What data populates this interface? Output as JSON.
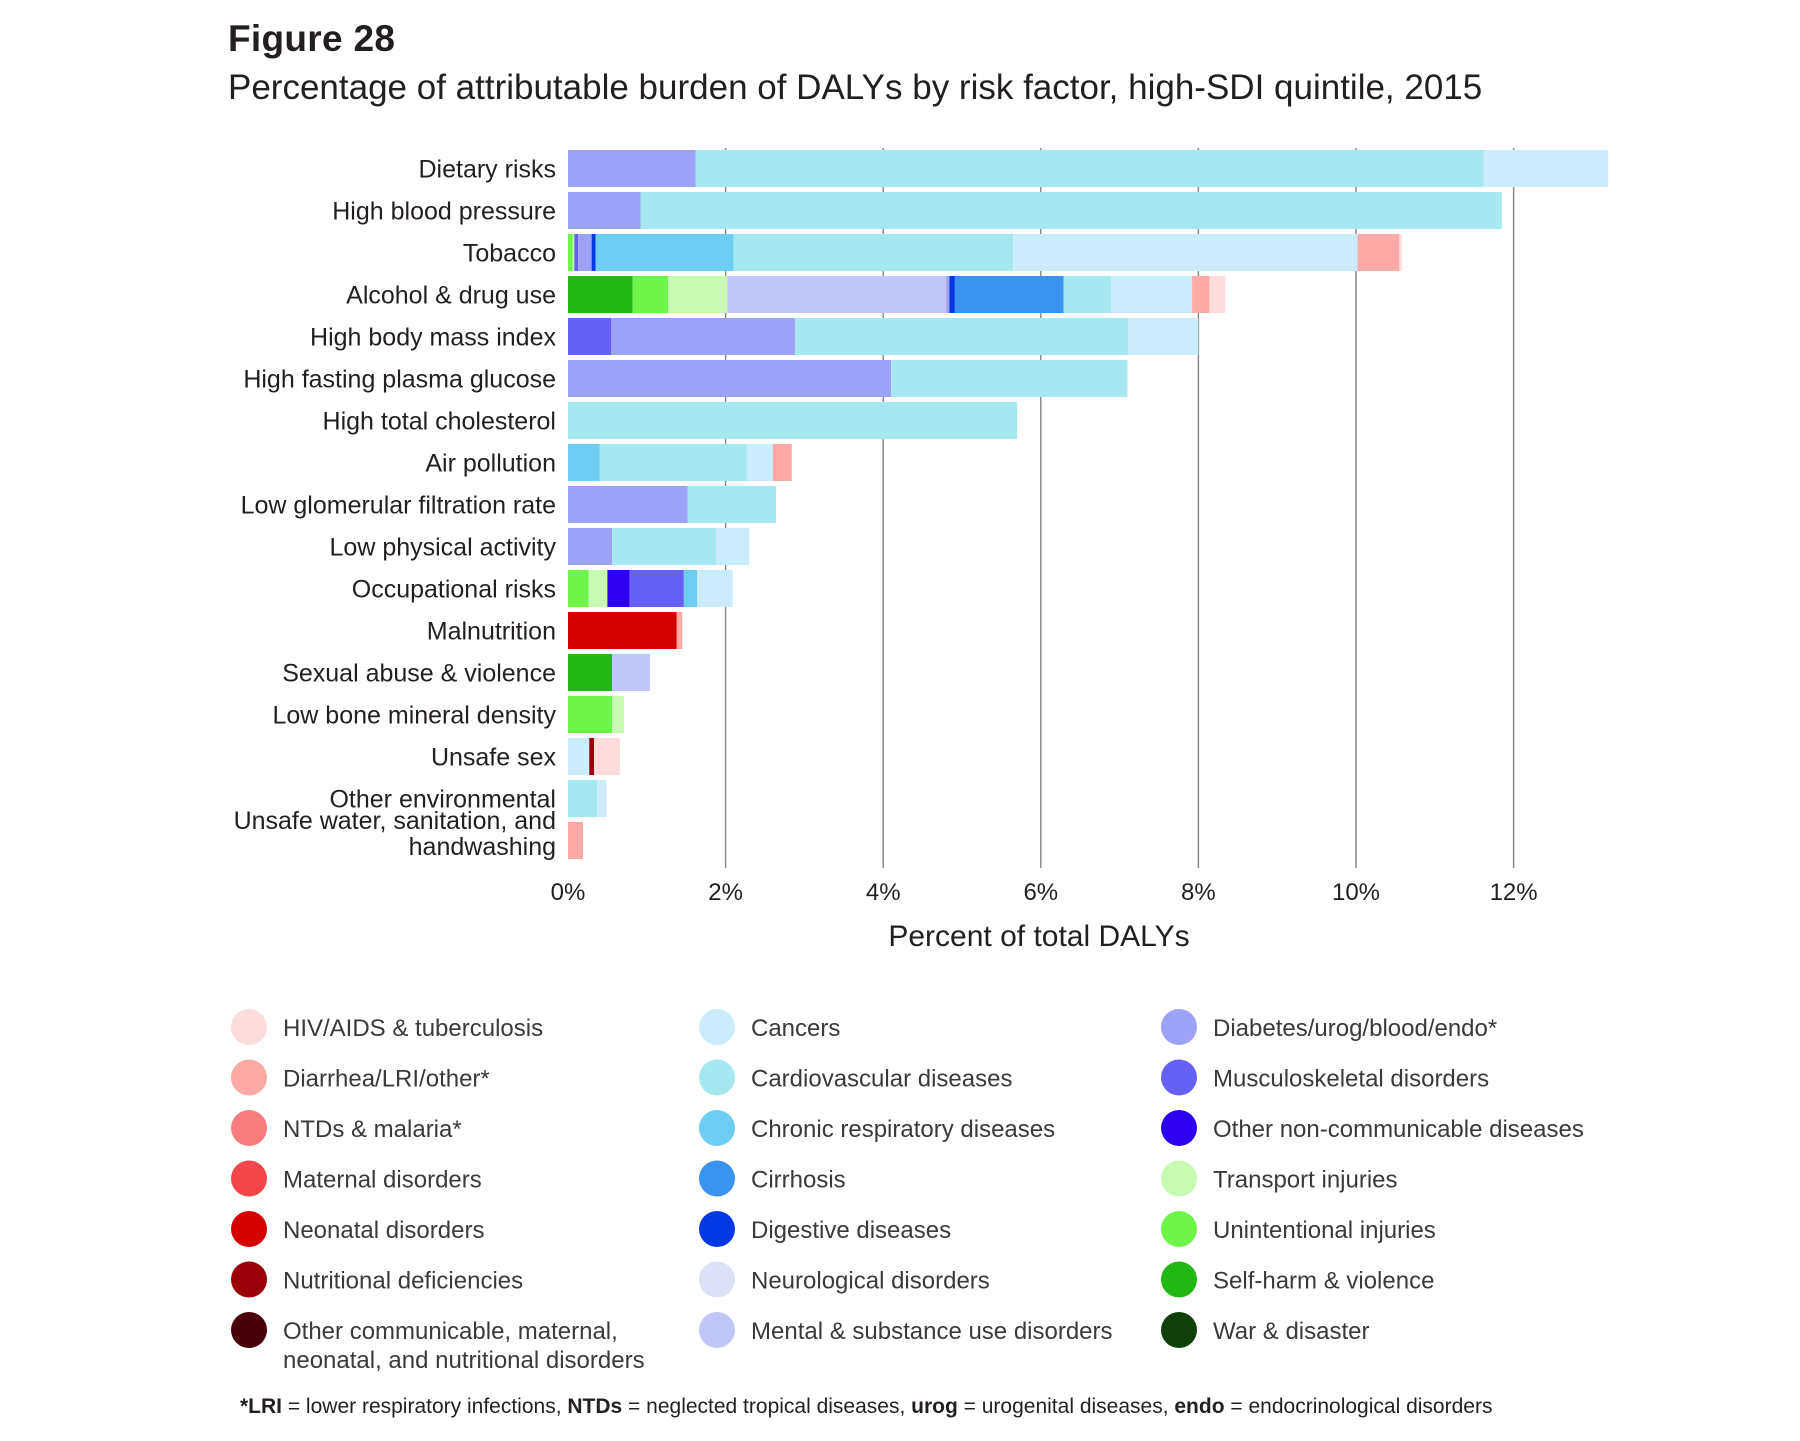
{
  "figure": {
    "label": "Figure 28",
    "title": "Percentage of attributable burden of DALYs by risk factor, high-SDI quintile, 2015"
  },
  "footnote": {
    "parts": [
      {
        "text": "*LRI",
        "bold": true
      },
      {
        "text": " = lower respiratory infections, ",
        "bold": false
      },
      {
        "text": "NTDs",
        "bold": true
      },
      {
        "text": " = neglected tropical diseases, ",
        "bold": false
      },
      {
        "text": "urog",
        "bold": true
      },
      {
        "text": " = urogenital diseases, ",
        "bold": false
      },
      {
        "text": "endo",
        "bold": true
      },
      {
        "text": " = endocrinological disorders",
        "bold": false
      }
    ]
  },
  "chart_data": {
    "type": "bar",
    "orientation": "horizontal",
    "stacked": true,
    "xlabel": "Percent of total DALYs",
    "ylabel": "",
    "xlim": [
      0,
      13.2
    ],
    "xticks": [
      0,
      2,
      4,
      6,
      8,
      10,
      12
    ],
    "xtick_labels": [
      "0%",
      "2%",
      "4%",
      "6%",
      "8%",
      "10%",
      "12%"
    ],
    "grid": "vertical",
    "legend_position": "bottom",
    "causes": [
      {
        "name": "HIV/AIDS & tuberculosis",
        "color": "#fddcdc"
      },
      {
        "name": "Diarrhea/LRI/other*",
        "color": "#fbaaa6"
      },
      {
        "name": "NTDs & malaria*",
        "color": "#f97d7d"
      },
      {
        "name": "Maternal disorders",
        "color": "#f5474a"
      },
      {
        "name": "Neonatal disorders",
        "color": "#d60000"
      },
      {
        "name": "Nutritional deficiencies",
        "color": "#9b0008"
      },
      {
        "name": "Other communicable, maternal, neonatal, and nutritional disorders",
        "color": "#4a0008"
      },
      {
        "name": "Cancers",
        "color": "#cbecfa"
      },
      {
        "name": "Cardiovascular diseases",
        "color": "#a5e8ef"
      },
      {
        "name": "Chronic respiratory diseases",
        "color": "#6dcdf2"
      },
      {
        "name": "Cirrhosis",
        "color": "#3894ee"
      },
      {
        "name": "Digestive diseases",
        "color": "#0338e5"
      },
      {
        "name": "Neurological disorders",
        "color": "#dde1f6"
      },
      {
        "name": "Mental & substance use disorders",
        "color": "#c1c6f9"
      },
      {
        "name": "Diabetes/urog/blood/endo*",
        "color": "#9ea2f7"
      },
      {
        "name": "Musculoskeletal disorders",
        "color": "#6660f5"
      },
      {
        "name": "Other non-communicable diseases",
        "color": "#2d00f0"
      },
      {
        "name": "Transport injuries",
        "color": "#c6fbb1"
      },
      {
        "name": "Unintentional injuries",
        "color": "#6ef54a"
      },
      {
        "name": "Self-harm & violence",
        "color": "#22b814"
      },
      {
        "name": "War & disaster",
        "color": "#0e4008"
      }
    ],
    "bars": [
      {
        "label": "Dietary risks",
        "segments": [
          {
            "cause": "Diabetes/urog/blood/endo*",
            "value": 1.62
          },
          {
            "cause": "Cardiovascular diseases",
            "value": 10.0
          },
          {
            "cause": "Cancers",
            "value": 1.58
          }
        ]
      },
      {
        "label": "High blood pressure",
        "segments": [
          {
            "cause": "Diabetes/urog/blood/endo*",
            "value": 0.92
          },
          {
            "cause": "Cardiovascular diseases",
            "value": 10.93
          }
        ]
      },
      {
        "label": "Tobacco",
        "segments": [
          {
            "cause": "Unintentional injuries",
            "value": 0.06
          },
          {
            "cause": "Transport injuries",
            "value": 0.02
          },
          {
            "cause": "Musculoskeletal disorders",
            "value": 0.05
          },
          {
            "cause": "Diabetes/urog/blood/endo*",
            "value": 0.17
          },
          {
            "cause": "Digestive diseases",
            "value": 0.05
          },
          {
            "cause": "Chronic respiratory diseases",
            "value": 1.75
          },
          {
            "cause": "Cardiovascular diseases",
            "value": 3.55
          },
          {
            "cause": "Cancers",
            "value": 4.37
          },
          {
            "cause": "Diarrhea/LRI/other*",
            "value": 0.53
          },
          {
            "cause": "HIV/AIDS & tuberculosis",
            "value": 0.03
          }
        ]
      },
      {
        "label": "Alcohol & drug use",
        "segments": [
          {
            "cause": "Self-harm & violence",
            "value": 0.82
          },
          {
            "cause": "Unintentional injuries",
            "value": 0.45
          },
          {
            "cause": "Transport injuries",
            "value": 0.75
          },
          {
            "cause": "Mental & substance use disorders",
            "value": 2.78
          },
          {
            "cause": "Diabetes/urog/blood/endo*",
            "value": 0.04
          },
          {
            "cause": "Digestive diseases",
            "value": 0.07
          },
          {
            "cause": "Cirrhosis",
            "value": 1.38
          },
          {
            "cause": "Cardiovascular diseases",
            "value": 0.6
          },
          {
            "cause": "Cancers",
            "value": 1.03
          },
          {
            "cause": "Diarrhea/LRI/other*",
            "value": 0.22
          },
          {
            "cause": "HIV/AIDS & tuberculosis",
            "value": 0.2
          }
        ]
      },
      {
        "label": "High body mass index",
        "segments": [
          {
            "cause": "Musculoskeletal disorders",
            "value": 0.55
          },
          {
            "cause": "Diabetes/urog/blood/endo*",
            "value": 2.33
          },
          {
            "cause": "Cardiovascular diseases",
            "value": 4.23
          },
          {
            "cause": "Cancers",
            "value": 0.89
          }
        ]
      },
      {
        "label": "High fasting plasma glucose",
        "segments": [
          {
            "cause": "Diabetes/urog/blood/endo*",
            "value": 4.1
          },
          {
            "cause": "Cardiovascular diseases",
            "value": 3.0
          }
        ]
      },
      {
        "label": "High total cholesterol",
        "segments": [
          {
            "cause": "Cardiovascular diseases",
            "value": 5.7
          }
        ]
      },
      {
        "label": "Air pollution",
        "segments": [
          {
            "cause": "Chronic respiratory diseases",
            "value": 0.4
          },
          {
            "cause": "Cardiovascular diseases",
            "value": 1.87
          },
          {
            "cause": "Cancers",
            "value": 0.33
          },
          {
            "cause": "Diarrhea/LRI/other*",
            "value": 0.24
          }
        ]
      },
      {
        "label": "Low glomerular filtration rate",
        "segments": [
          {
            "cause": "Diabetes/urog/blood/endo*",
            "value": 1.52
          },
          {
            "cause": "Cardiovascular diseases",
            "value": 1.12
          }
        ]
      },
      {
        "label": "Low physical activity",
        "segments": [
          {
            "cause": "Diabetes/urog/blood/endo*",
            "value": 0.56
          },
          {
            "cause": "Cardiovascular diseases",
            "value": 1.32
          },
          {
            "cause": "Cancers",
            "value": 0.42
          }
        ]
      },
      {
        "label": "Occupational risks",
        "segments": [
          {
            "cause": "Unintentional injuries",
            "value": 0.26
          },
          {
            "cause": "Transport injuries",
            "value": 0.24
          },
          {
            "cause": "Other non-communicable diseases",
            "value": 0.28
          },
          {
            "cause": "Musculoskeletal disorders",
            "value": 0.69
          },
          {
            "cause": "Chronic respiratory diseases",
            "value": 0.17
          },
          {
            "cause": "Cancers",
            "value": 0.45
          }
        ]
      },
      {
        "label": "Malnutrition",
        "segments": [
          {
            "cause": "Neonatal disorders",
            "value": 1.38
          },
          {
            "cause": "Diarrhea/LRI/other*",
            "value": 0.07
          }
        ]
      },
      {
        "label": "Sexual abuse & violence",
        "segments": [
          {
            "cause": "Self-harm & violence",
            "value": 0.56
          },
          {
            "cause": "Mental & substance use disorders",
            "value": 0.48
          }
        ]
      },
      {
        "label": "Low bone mineral density",
        "segments": [
          {
            "cause": "Unintentional injuries",
            "value": 0.56
          },
          {
            "cause": "Transport injuries",
            "value": 0.15
          }
        ]
      },
      {
        "label": "Unsafe sex",
        "segments": [
          {
            "cause": "Cancers",
            "value": 0.27
          },
          {
            "cause": "Nutritional deficiencies",
            "value": 0.06
          },
          {
            "cause": "HIV/AIDS & tuberculosis",
            "value": 0.33
          }
        ]
      },
      {
        "label": "Other environmental",
        "segments": [
          {
            "cause": "Cardiovascular diseases",
            "value": 0.37
          },
          {
            "cause": "Cancers",
            "value": 0.12
          }
        ]
      },
      {
        "label": "Unsafe water, sanitation, and handwashing",
        "label_lines": [
          "Unsafe water, sanitation, and",
          "handwashing"
        ],
        "segments": [
          {
            "cause": "Diarrhea/LRI/other*",
            "value": 0.19
          }
        ]
      }
    ]
  }
}
